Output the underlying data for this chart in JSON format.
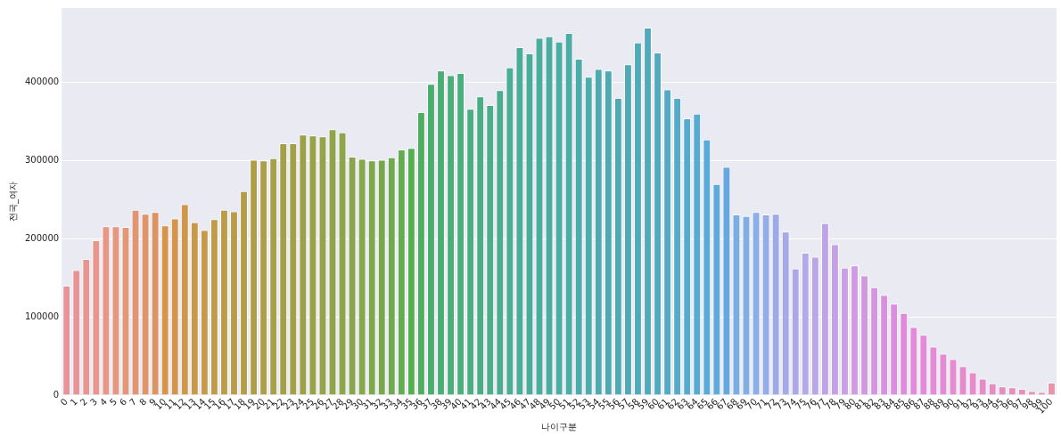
{
  "chart_data": {
    "type": "bar",
    "xlabel": "나이구분",
    "ylabel": "전국_여자",
    "categories": [
      "0",
      "1",
      "2",
      "3",
      "4",
      "5",
      "6",
      "7",
      "8",
      "9",
      "10",
      "11",
      "12",
      "13",
      "14",
      "15",
      "16",
      "17",
      "18",
      "19",
      "20",
      "21",
      "22",
      "23",
      "24",
      "25",
      "26",
      "27",
      "28",
      "29",
      "30",
      "31",
      "32",
      "33",
      "34",
      "35",
      "36",
      "37",
      "38",
      "39",
      "40",
      "41",
      "42",
      "43",
      "44",
      "45",
      "46",
      "47",
      "48",
      "49",
      "50",
      "51",
      "52",
      "53",
      "54",
      "55",
      "56",
      "57",
      "58",
      "59",
      "60",
      "61",
      "62",
      "63",
      "64",
      "65",
      "66",
      "67",
      "68",
      "69",
      "70",
      "71",
      "72",
      "73",
      "74",
      "75",
      "76",
      "77",
      "78",
      "79",
      "80",
      "81",
      "82",
      "83",
      "84",
      "85",
      "86",
      "87",
      "88",
      "89",
      "90",
      "91",
      "92",
      "93",
      "94",
      "95",
      "96",
      "97",
      "98",
      "99",
      "100"
    ],
    "values": [
      140000,
      160000,
      174000,
      198000,
      216000,
      216000,
      215000,
      237000,
      232000,
      234000,
      217000,
      226000,
      244000,
      221000,
      211000,
      225000,
      237000,
      235000,
      261000,
      301000,
      300000,
      303000,
      322000,
      322000,
      333000,
      332000,
      331000,
      340000,
      336000,
      305000,
      302000,
      300000,
      301000,
      304000,
      314000,
      316000,
      362000,
      398000,
      415000,
      409000,
      412000,
      366000,
      382000,
      371000,
      390000,
      419000,
      445000,
      437000,
      457000,
      459000,
      452000,
      463000,
      430000,
      407000,
      417000,
      415000,
      380000,
      423000,
      451000,
      470000,
      438000,
      391000,
      380000,
      354000,
      360000,
      327000,
      270000,
      292000,
      231000,
      229000,
      234000,
      231000,
      232000,
      209000,
      162000,
      182000,
      177000,
      220000,
      193000,
      163000,
      166000,
      153000,
      138000,
      128000,
      117000,
      105000,
      87000,
      77000,
      62000,
      53000,
      46000,
      37000,
      29000,
      21000,
      15000,
      11000,
      10000,
      8000,
      5000,
      4000,
      16000
    ],
    "colors": [
      "#e8939a",
      "#e89496",
      "#e89592",
      "#e8968c",
      "#e89786",
      "#e6977f",
      "#e49679",
      "#e29572",
      "#df946a",
      "#dc9462",
      "#d9944c",
      "#d4954a",
      "#cf9749",
      "#ca9948",
      "#c69a48",
      "#c29b48",
      "#bd9c48",
      "#b89c48",
      "#b49c48",
      "#b09d48",
      "#ac9f48",
      "#a8a048",
      "#a4a048",
      "#a0a148",
      "#9ca148",
      "#98a248",
      "#95a349",
      "#92a449",
      "#8ea549",
      "#8aa64a",
      "#85a84a",
      "#7ea94b",
      "#77a94b",
      "#6faa4c",
      "#62ad4d",
      "#52b04e",
      "#4daf5d",
      "#48ae6b",
      "#49ae71",
      "#49ae77",
      "#4aaf7c",
      "#4aaf80",
      "#4aae84",
      "#4aae88",
      "#4aad8e",
      "#4aad94",
      "#4aad97",
      "#4aad9a",
      "#4bad9d",
      "#4bada0",
      "#4bada3",
      "#4cada6",
      "#4cacaa",
      "#4dacac",
      "#4dabae",
      "#4eaab0",
      "#4faab3",
      "#50aab6",
      "#50aab9",
      "#51aabc",
      "#52aabf",
      "#53aac4",
      "#54aac8",
      "#55abcd",
      "#56abd2",
      "#58abd8",
      "#5eaadc",
      "#64a8e0",
      "#7aaee2",
      "#82aee4",
      "#8aaee6",
      "#94ace7",
      "#9eaae8",
      "#a4a9e8",
      "#aca8e8",
      "#b4a8e8",
      "#b8a6e7",
      "#bfa3e7",
      "#c6a0e6",
      "#cb9de5",
      "#d09ae4",
      "#d397e2",
      "#d694e1",
      "#d991df",
      "#dc8ede",
      "#e08adc",
      "#e28adb",
      "#e38ad8",
      "#e48ad6",
      "#e58ad4",
      "#e68ad2",
      "#e68ace",
      "#e78bcb",
      "#e78bc7",
      "#e78bc3",
      "#e88cc0",
      "#e88ebb",
      "#e88fb6",
      "#e890b1",
      "#e892ad",
      "#e895a8"
    ],
    "ylim": [
      0,
      495000
    ],
    "yticks": [
      0,
      100000,
      200000,
      300000,
      400000
    ],
    "grid": "y",
    "legend": false
  }
}
